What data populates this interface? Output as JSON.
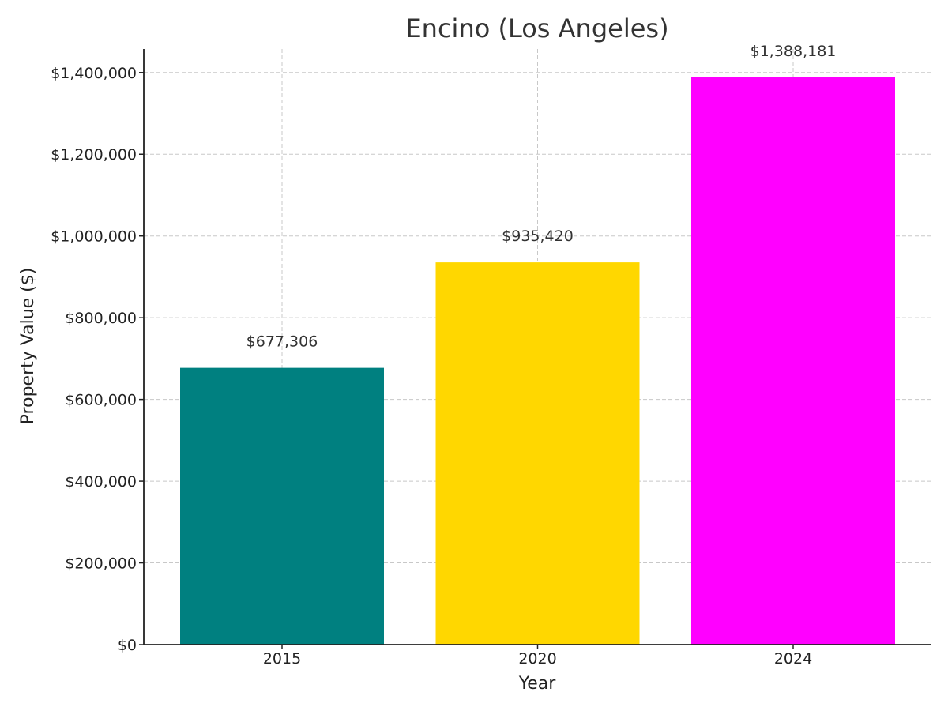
{
  "chart_data": {
    "type": "bar",
    "title": "Encino (Los Angeles)",
    "xlabel": "Year",
    "ylabel": "Property Value ($)",
    "categories": [
      "2015",
      "2020",
      "2024"
    ],
    "values": [
      677306,
      935420,
      1388181
    ],
    "value_labels": [
      "$677,306",
      "$935,420",
      "$1,388,181"
    ],
    "colors": [
      "#008080",
      "#FFD700",
      "#FF00FF"
    ],
    "ylim": [
      0,
      1457590
    ],
    "yticks": [
      0,
      200000,
      400000,
      600000,
      800000,
      1000000,
      1200000,
      1400000
    ],
    "ytick_labels": [
      "$0",
      "$200,000",
      "$400,000",
      "$600,000",
      "$800,000",
      "$1,000,000",
      "$1,200,000",
      "$1,400,000"
    ],
    "grid": true
  }
}
